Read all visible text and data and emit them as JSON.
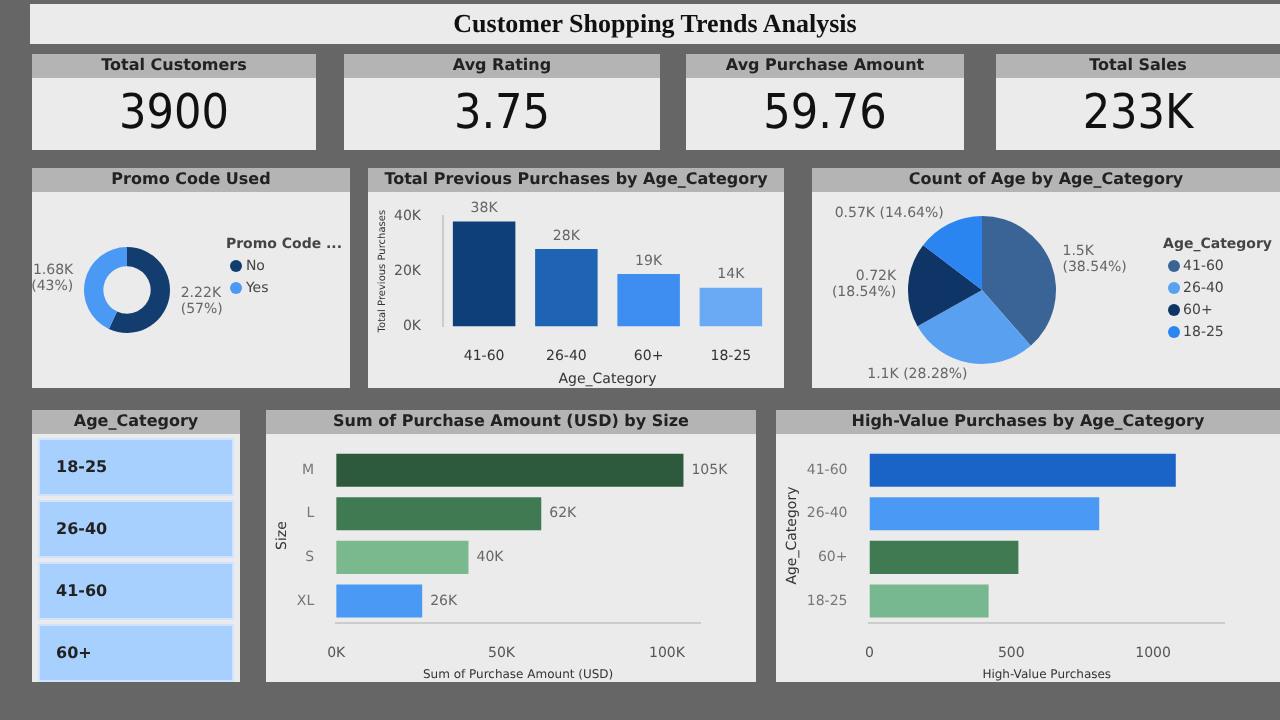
{
  "chart_data": [
    {
      "type": "other",
      "title": "Customer Shopping Trends Analysis"
    },
    {
      "type": "other",
      "title": "Total Customers",
      "annotations": [
        "3900"
      ]
    },
    {
      "type": "other",
      "title": "Avg Rating",
      "annotations": [
        "3.75"
      ]
    },
    {
      "type": "other",
      "title": "Avg Purchase Amount",
      "annotations": [
        "59.76"
      ]
    },
    {
      "type": "other",
      "title": "Total Sales",
      "annotations": [
        "233K"
      ]
    },
    {
      "type": "donut",
      "title": "Promo Code Used",
      "categories": [
        "No",
        "Yes"
      ],
      "values": [
        2220,
        1680
      ],
      "colors": [
        "#123d6e",
        "#4a9af5"
      ],
      "value_labels": [
        "2.22K (57%)",
        "1.68K (43%)"
      ],
      "legend": "right",
      "legend_title": "Promo Code ..."
    },
    {
      "type": "bar",
      "title": "Total Previous Purchases by Age_Category",
      "categories": [
        "41-60",
        "26-40",
        "60+",
        "18-25"
      ],
      "values": [
        38000,
        28000,
        19000,
        14000
      ],
      "colors": [
        "#0f3f78",
        "#1f64b4",
        "#3d8ef0",
        "#6aaaf5"
      ],
      "value_labels": [
        "38K",
        "28K",
        "19K",
        "14K"
      ],
      "xlabel": "Age_Category",
      "ylabel": "Total Previous Purchases",
      "ylim": [
        0,
        40000
      ],
      "yticks": [
        {
          "value": 0,
          "label": "0K"
        },
        {
          "value": 20000,
          "label": "20K"
        },
        {
          "value": 40000,
          "label": "40K"
        }
      ]
    },
    {
      "type": "pie",
      "title": "Count of Age by Age_Category",
      "categories": [
        "41-60",
        "26-40",
        "60+",
        "18-25"
      ],
      "values": [
        1500,
        1100,
        720,
        570
      ],
      "colors": [
        "#3a6496",
        "#5aa0f0",
        "#0f3566",
        "#2a85f0"
      ],
      "value_labels": [
        "1.5K (38.54%)",
        "1.1K (28.28%)",
        "0.72K (18.54%)",
        "0.57K (14.64%)"
      ],
      "legend": "right",
      "legend_title": "Age_Category"
    },
    {
      "type": "other",
      "title": "Age_Category",
      "annotations": [
        "18-25",
        "26-40",
        "41-60",
        "60+"
      ]
    },
    {
      "type": "bar",
      "orientation": "horizontal",
      "title": "Sum of Purchase Amount (USD) by Size",
      "categories": [
        "M",
        "L",
        "S",
        "XL"
      ],
      "values": [
        105000,
        62000,
        40000,
        26000
      ],
      "colors": [
        "#2d5a3c",
        "#3f7a52",
        "#7ab88e",
        "#4a9af5"
      ],
      "value_labels": [
        "105K",
        "62K",
        "40K",
        "26K"
      ],
      "xlabel": "Sum of Purchase Amount (USD)",
      "ylabel": "Size",
      "xlim": [
        0,
        110000
      ],
      "xticks": [
        {
          "value": 0,
          "label": "0K"
        },
        {
          "value": 50000,
          "label": "50K"
        },
        {
          "value": 100000,
          "label": "100K"
        }
      ]
    },
    {
      "type": "bar",
      "orientation": "horizontal",
      "title": "High-Value Purchases by Age_Category",
      "categories": [
        "41-60",
        "26-40",
        "60+",
        "18-25"
      ],
      "values": [
        1080,
        810,
        525,
        420
      ],
      "colors": [
        "#1a64c8",
        "#4a9af5",
        "#3f7a52",
        "#78b890"
      ],
      "xlabel": "High-Value Purchases",
      "ylabel": "Age_Category",
      "xlim": [
        0,
        1250
      ],
      "xticks": [
        0,
        500,
        1000
      ]
    }
  ]
}
